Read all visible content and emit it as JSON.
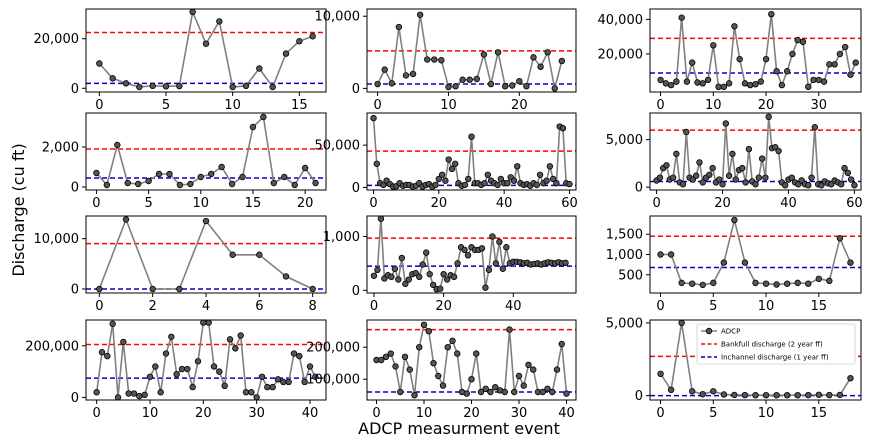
{
  "figure": {
    "ylabel": "Discharge (cu ft)",
    "xlabel": "ADCP measurment event",
    "legend": {
      "placement": "upper right of bottom-right panel",
      "entries": [
        "ADCP",
        "Bankfull discharge (2 year ff)",
        "Inchannel discharge (1 year ff)"
      ]
    },
    "colors": {
      "adcp_line": "#808080",
      "adcp_marker": "#555555",
      "bankfull": "#ff0000",
      "inchannel": "#0000cc"
    }
  },
  "chart_data": [
    {
      "type": "line",
      "panel": 1,
      "xlim": [
        -1,
        17
      ],
      "ylim": [
        -1500,
        32000
      ],
      "xticks": [
        0,
        5,
        10,
        15
      ],
      "yticks": [
        0,
        20000
      ],
      "bankfull": 22500,
      "inchannel": 2000,
      "x": [
        0,
        1,
        2,
        3,
        4,
        5,
        6,
        7,
        8,
        9,
        10,
        11,
        12,
        13,
        14,
        15,
        16
      ],
      "y": [
        10000,
        4000,
        2000,
        500,
        1000,
        800,
        900,
        30800,
        18000,
        27000,
        500,
        1000,
        8000,
        500,
        14000,
        19000,
        21000
      ]
    },
    {
      "type": "line",
      "panel": 2,
      "xlim": [
        -1.5,
        28
      ],
      "ylim": [
        -500,
        11000
      ],
      "xticks": [
        0,
        10,
        20
      ],
      "yticks": [
        0,
        10000
      ],
      "bankfull": 5200,
      "inchannel": 600,
      "x": [
        0,
        1,
        2,
        3,
        4,
        5,
        6,
        7,
        8,
        9,
        10,
        11,
        12,
        13,
        14,
        15,
        16,
        17,
        18,
        19,
        20,
        21,
        22,
        23,
        24,
        25,
        26
      ],
      "y": [
        600,
        2600,
        700,
        8500,
        1800,
        2000,
        10200,
        4000,
        4000,
        3900,
        200,
        300,
        1200,
        1200,
        1300,
        4700,
        600,
        5000,
        300,
        400,
        1000,
        300,
        4300,
        3000,
        5000,
        0,
        3800
      ]
    },
    {
      "type": "line",
      "panel": 3,
      "xlim": [
        -2,
        38
      ],
      "ylim": [
        -2000,
        46000
      ],
      "xticks": [
        0,
        10,
        20,
        30
      ],
      "yticks": [
        20000,
        40000
      ],
      "bankfull": 29000,
      "inchannel": 9000,
      "x": [
        0,
        1,
        2,
        3,
        4,
        5,
        6,
        7,
        8,
        9,
        10,
        11,
        12,
        13,
        14,
        15,
        16,
        17,
        18,
        19,
        20,
        21,
        22,
        23,
        24,
        25,
        26,
        27,
        28,
        29,
        30,
        31,
        32,
        33,
        34,
        35,
        36,
        37
      ],
      "y": [
        5000,
        3000,
        2000,
        4000,
        41000,
        4000,
        15000,
        3500,
        3000,
        5000,
        25000,
        1000,
        1000,
        3000,
        36000,
        17000,
        3000,
        2000,
        2500,
        4000,
        17000,
        43000,
        10000,
        2000,
        10000,
        20000,
        28000,
        27000,
        1000,
        5000,
        5000,
        4000,
        14000,
        14000,
        20000,
        24000,
        8000,
        15000
      ]
    },
    {
      "type": "line",
      "panel": 4,
      "xlim": [
        -1,
        22
      ],
      "ylim": [
        -150,
        3700
      ],
      "xticks": [
        0,
        5,
        10,
        15,
        20
      ],
      "yticks": [
        0,
        2000
      ],
      "bankfull": 1900,
      "inchannel": 450,
      "x": [
        0,
        1,
        2,
        3,
        4,
        5,
        6,
        7,
        8,
        9,
        10,
        11,
        12,
        13,
        14,
        15,
        16,
        17,
        18,
        19,
        20,
        21
      ],
      "y": [
        700,
        100,
        2100,
        200,
        150,
        300,
        650,
        650,
        100,
        150,
        500,
        650,
        1000,
        150,
        500,
        3000,
        3500,
        200,
        500,
        100,
        950,
        200
      ]
    },
    {
      "type": "line",
      "panel": 5,
      "xlim": [
        -2,
        62
      ],
      "ylim": [
        -3000,
        88000
      ],
      "xticks": [
        0,
        20,
        40,
        60
      ],
      "yticks": [
        0,
        50000
      ],
      "bankfull": 43000,
      "inchannel": 2500,
      "x": [
        0,
        1,
        2,
        3,
        4,
        5,
        6,
        7,
        8,
        9,
        10,
        11,
        12,
        13,
        14,
        15,
        16,
        17,
        18,
        19,
        20,
        21,
        22,
        23,
        24,
        25,
        26,
        27,
        28,
        29,
        30,
        31,
        32,
        33,
        34,
        35,
        36,
        37,
        38,
        39,
        40,
        41,
        42,
        43,
        44,
        45,
        46,
        47,
        48,
        49,
        50,
        51,
        52,
        53,
        54,
        55,
        56,
        57,
        58,
        59,
        60
      ],
      "y": [
        82000,
        28000,
        5000,
        3000,
        8000,
        4000,
        1000,
        1500,
        5000,
        2000,
        3000,
        3000,
        1000,
        2000,
        5000,
        1000,
        3000,
        4000,
        1000,
        3000,
        10000,
        15000,
        8000,
        33000,
        22000,
        28000,
        5000,
        2000,
        3000,
        10000,
        60000,
        5000,
        5000,
        3000,
        5000,
        15000,
        8000,
        5000,
        3000,
        10000,
        5000,
        5000,
        12000,
        8000,
        25000,
        5000,
        3000,
        4000,
        2000,
        5000,
        3000,
        15000,
        5000,
        8000,
        25000,
        10000,
        5000,
        72000,
        70000,
        5000,
        4000
      ]
    },
    {
      "type": "line",
      "panel": 6,
      "xlim": [
        -2,
        62
      ],
      "ylim": [
        -300,
        7800
      ],
      "xticks": [
        0,
        20,
        40,
        60
      ],
      "yticks": [
        0,
        5000
      ],
      "bankfull": 6000,
      "inchannel": 600,
      "x": [
        0,
        1,
        2,
        3,
        4,
        5,
        6,
        7,
        8,
        9,
        10,
        11,
        12,
        13,
        14,
        15,
        16,
        17,
        18,
        19,
        20,
        21,
        22,
        23,
        24,
        25,
        26,
        27,
        28,
        29,
        30,
        31,
        32,
        33,
        34,
        35,
        36,
        37,
        38,
        39,
        40,
        41,
        42,
        43,
        44,
        45,
        46,
        47,
        48,
        49,
        50,
        51,
        52,
        53,
        54,
        55,
        56,
        57,
        58,
        59,
        60
      ],
      "y": [
        700,
        1000,
        2000,
        2300,
        800,
        1000,
        3500,
        500,
        300,
        5800,
        1000,
        800,
        1200,
        2600,
        500,
        1000,
        1300,
        2000,
        500,
        800,
        300,
        6700,
        1200,
        3500,
        800,
        1800,
        2000,
        500,
        4000,
        600,
        300,
        1000,
        3000,
        1000,
        7400,
        4100,
        4200,
        3800,
        500,
        200,
        800,
        1000,
        500,
        300,
        700,
        300,
        200,
        1000,
        6300,
        300,
        200,
        600,
        400,
        300,
        700,
        500,
        300,
        2000,
        1500,
        800,
        200
      ]
    },
    {
      "type": "line",
      "panel": 7,
      "xlim": [
        -0.5,
        8.5
      ],
      "ylim": [
        -800,
        14500
      ],
      "xticks": [
        0,
        2,
        4,
        6,
        8
      ],
      "yticks": [
        0,
        10000
      ],
      "bankfull": 9000,
      "inchannel": 0,
      "x": [
        0,
        1,
        2,
        3,
        4,
        5,
        6,
        7,
        8
      ],
      "y": [
        0,
        13800,
        0,
        0,
        13500,
        6800,
        6800,
        2500,
        0
      ]
    },
    {
      "type": "line",
      "panel": 8,
      "xlim": [
        -2,
        58
      ],
      "ylim": [
        -50,
        1380
      ],
      "xticks": [
        0,
        20,
        40
      ],
      "yticks": [
        0,
        1000
      ],
      "bankfull": 970,
      "inchannel": 450,
      "x": [
        0,
        1,
        2,
        3,
        4,
        5,
        6,
        7,
        8,
        9,
        10,
        11,
        12,
        13,
        14,
        15,
        16,
        17,
        18,
        19,
        20,
        21,
        22,
        23,
        24,
        25,
        26,
        27,
        28,
        29,
        30,
        31,
        32,
        33,
        34,
        35,
        36,
        37,
        38,
        39,
        40,
        41,
        42,
        43,
        44,
        45,
        46,
        47,
        48,
        49,
        50,
        51,
        52,
        53,
        54,
        55
      ],
      "y": [
        270,
        380,
        1330,
        220,
        280,
        250,
        400,
        200,
        600,
        120,
        200,
        300,
        320,
        250,
        480,
        700,
        300,
        100,
        20,
        30,
        300,
        200,
        280,
        250,
        500,
        800,
        750,
        650,
        800,
        750,
        750,
        780,
        50,
        380,
        1000,
        500,
        900,
        400,
        800,
        500,
        530,
        530,
        520,
        500,
        510,
        480,
        490,
        500,
        480,
        500,
        520,
        510,
        500,
        520,
        500,
        510
      ]
    },
    {
      "type": "line",
      "panel": 9,
      "xlim": [
        -1,
        19
      ],
      "ylim": [
        50,
        1950
      ],
      "xticks": [
        0,
        5,
        10,
        15
      ],
      "yticks": [
        500,
        1000,
        1500
      ],
      "bankfull": 1450,
      "inchannel": 680,
      "x": [
        0,
        1,
        2,
        3,
        4,
        5,
        6,
        7,
        8,
        9,
        10,
        11,
        12,
        13,
        14,
        15,
        16,
        17,
        18
      ],
      "y": [
        1000,
        1000,
        300,
        280,
        250,
        300,
        800,
        1850,
        800,
        300,
        280,
        260,
        280,
        300,
        280,
        400,
        350,
        1400,
        800
      ]
    },
    {
      "type": "line",
      "panel": 10,
      "xlim": [
        -2,
        43
      ],
      "ylim": [
        -10000,
        300000
      ],
      "xticks": [
        0,
        10,
        20,
        30,
        40
      ],
      "yticks": [
        0,
        200000
      ],
      "bankfull": 205000,
      "inchannel": 75000,
      "x": [
        0,
        1,
        2,
        3,
        4,
        5,
        6,
        7,
        8,
        9,
        10,
        11,
        12,
        13,
        14,
        15,
        16,
        17,
        18,
        19,
        20,
        21,
        22,
        23,
        24,
        25,
        26,
        27,
        28,
        29,
        30,
        31,
        32,
        33,
        34,
        35,
        36,
        37,
        38,
        39,
        40,
        41
      ],
      "y": [
        20000,
        175000,
        160000,
        285000,
        0,
        215000,
        15000,
        15000,
        5000,
        10000,
        80000,
        120000,
        20000,
        170000,
        235000,
        90000,
        110000,
        110000,
        40000,
        140000,
        290000,
        290000,
        120000,
        100000,
        45000,
        225000,
        190000,
        240000,
        20000,
        20000,
        0,
        80000,
        40000,
        40000,
        70000,
        60000,
        60000,
        170000,
        160000,
        60000,
        120000,
        80000
      ]
    },
    {
      "type": "line",
      "panel": 11,
      "xlim": [
        -2,
        42
      ],
      "ylim": [
        35000,
        285000
      ],
      "xticks": [
        0,
        10,
        20,
        30,
        40
      ],
      "yticks": [
        100000,
        200000
      ],
      "bankfull": 255000,
      "inchannel": 60000,
      "x": [
        0,
        1,
        2,
        3,
        4,
        5,
        6,
        7,
        8,
        9,
        10,
        11,
        12,
        13,
        14,
        15,
        16,
        17,
        18,
        19,
        20,
        21,
        22,
        23,
        24,
        25,
        26,
        27,
        28,
        29,
        30,
        31,
        32,
        33,
        34,
        35,
        36,
        37,
        38,
        39,
        40
      ],
      "y": [
        160000,
        160000,
        170000,
        180000,
        140000,
        60000,
        170000,
        130000,
        50000,
        200000,
        270000,
        250000,
        150000,
        110000,
        80000,
        200000,
        220000,
        180000,
        60000,
        55000,
        100000,
        180000,
        60000,
        70000,
        60000,
        75000,
        65000,
        60000,
        255000,
        60000,
        110000,
        80000,
        145000,
        130000,
        60000,
        60000,
        70000,
        60000,
        130000,
        210000,
        55000
      ]
    },
    {
      "type": "line",
      "panel": 12,
      "xlim": [
        -1,
        19
      ],
      "ylim": [
        -300,
        5200
      ],
      "xticks": [
        0,
        5,
        10,
        15
      ],
      "yticks": [
        0,
        5000
      ],
      "bankfull": 2700,
      "inchannel": 0,
      "x": [
        0,
        1,
        2,
        3,
        4,
        5,
        6,
        7,
        8,
        9,
        10,
        11,
        12,
        13,
        14,
        15,
        16,
        17,
        18
      ],
      "y": [
        1500,
        400,
        5000,
        300,
        100,
        300,
        80,
        50,
        40,
        30,
        30,
        30,
        30,
        30,
        40,
        60,
        40,
        50,
        1200
      ]
    }
  ]
}
